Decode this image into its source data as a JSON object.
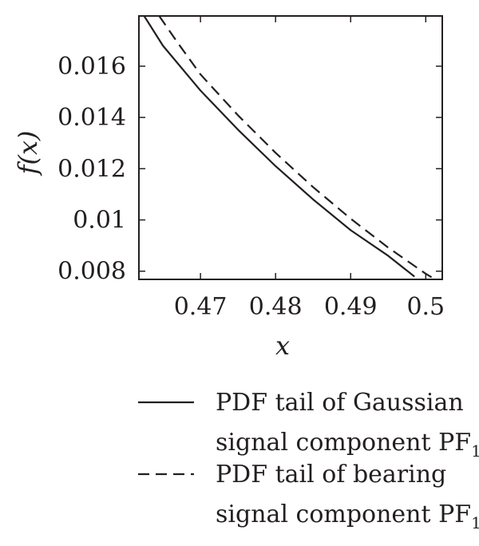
{
  "chart_data": {
    "type": "line",
    "xlabel": "x",
    "ylabel": "f(x)",
    "xlim": [
      0.4618,
      0.5022
    ],
    "ylim": [
      0.00768,
      0.01796
    ],
    "xticks": [
      0.47,
      0.48,
      0.49,
      0.5
    ],
    "xtick_labels": [
      "0.47",
      "0.48",
      "0.49",
      "0.5"
    ],
    "yticks": [
      0.008,
      0.01,
      0.012,
      0.014,
      0.016
    ],
    "ytick_labels": [
      "0.008",
      "0.01",
      "0.012",
      "0.014",
      "0.016"
    ],
    "grid": false,
    "legend": {
      "placement": "below",
      "entries": [
        {
          "line1": "PDF tail of Gaussian",
          "line2": "signal component PF",
          "subscript": "1",
          "style": "solid"
        },
        {
          "line1": "PDF tail of bearing",
          "line2": "signal component PF",
          "subscript": "1",
          "style": "dashed"
        }
      ]
    },
    "series": [
      {
        "style": "solid",
        "color": "#231f20",
        "x": [
          0.4625,
          0.465,
          0.47,
          0.475,
          0.48,
          0.485,
          0.49,
          0.495,
          0.4985
        ],
        "y": [
          0.01796,
          0.0168,
          0.01505,
          0.01352,
          0.0121,
          0.0108,
          0.0096,
          0.0086,
          0.00779
        ]
      },
      {
        "style": "dashed",
        "color": "#231f20",
        "x": [
          0.4645,
          0.467,
          0.47,
          0.475,
          0.48,
          0.485,
          0.49,
          0.495,
          0.5,
          0.5014
        ],
        "y": [
          0.01796,
          0.0169,
          0.01568,
          0.01408,
          0.01262,
          0.01128,
          0.01005,
          0.00892,
          0.0079,
          0.00765
        ]
      }
    ]
  },
  "style": {
    "ink": "#231f20",
    "background": "#ffffff"
  }
}
